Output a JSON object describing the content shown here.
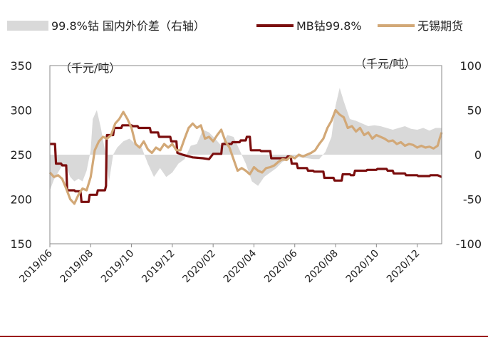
{
  "chart_data": {
    "type": "line",
    "title": "",
    "legend": [
      {
        "name": "99.8%钴 国内外价差（右轴）",
        "kind": "area",
        "color": "#d9d9d9",
        "axis": "right"
      },
      {
        "name": "MB钴99.8%",
        "kind": "line",
        "color": "#7b0e0e",
        "axis": "left"
      },
      {
        "name": "无锡期货",
        "kind": "line",
        "color": "#d2a877",
        "axis": "left"
      }
    ],
    "left_axis": {
      "unit_label": "（千元/吨）",
      "min": 150,
      "max": 350,
      "ticks": [
        "350",
        "300",
        "250",
        "200",
        "150"
      ]
    },
    "right_axis": {
      "unit_label": "（千元/吨）",
      "min": -100,
      "max": 100,
      "ticks": [
        "100",
        "50",
        "0",
        "-50",
        "-100"
      ]
    },
    "x_range": [
      0,
      19.2
    ],
    "x_ticks": [
      {
        "x": 0,
        "label": "2019/06"
      },
      {
        "x": 2,
        "label": "2019/08"
      },
      {
        "x": 4,
        "label": "2019/10"
      },
      {
        "x": 6,
        "label": "2019/12"
      },
      {
        "x": 8,
        "label": "2020/02"
      },
      {
        "x": 10,
        "label": "2020/04"
      },
      {
        "x": 12,
        "label": "2020/06"
      },
      {
        "x": 14,
        "label": "2020/08"
      },
      {
        "x": 16,
        "label": "2020/10"
      },
      {
        "x": 18,
        "label": "2020/12"
      }
    ],
    "series": [
      {
        "name": "99.8%钴 国内外价差（右轴）",
        "axis": "right",
        "points": [
          [
            0,
            -40
          ],
          [
            0.2,
            -28
          ],
          [
            0.4,
            -20
          ],
          [
            0.6,
            -12
          ],
          [
            0.8,
            -14
          ],
          [
            1.0,
            -25
          ],
          [
            1.2,
            -30
          ],
          [
            1.4,
            -27
          ],
          [
            1.6,
            -30
          ],
          [
            1.8,
            -18
          ],
          [
            2.0,
            5
          ],
          [
            2.1,
            40
          ],
          [
            2.3,
            50
          ],
          [
            2.5,
            30
          ],
          [
            2.7,
            5
          ],
          [
            2.9,
            -30
          ],
          [
            3.1,
            0
          ],
          [
            3.3,
            8
          ],
          [
            3.6,
            15
          ],
          [
            3.9,
            18
          ],
          [
            4.2,
            12
          ],
          [
            4.5,
            8
          ],
          [
            4.8,
            -10
          ],
          [
            5.1,
            -25
          ],
          [
            5.4,
            -15
          ],
          [
            5.7,
            -25
          ],
          [
            6.0,
            -20
          ],
          [
            6.3,
            -10
          ],
          [
            6.6,
            -5
          ],
          [
            6.9,
            10
          ],
          [
            7.2,
            12
          ],
          [
            7.5,
            28
          ],
          [
            7.8,
            25
          ],
          [
            8.1,
            18
          ],
          [
            8.4,
            10
          ],
          [
            8.7,
            22
          ],
          [
            9.0,
            20
          ],
          [
            9.3,
            5
          ],
          [
            9.6,
            -10
          ],
          [
            9.9,
            -30
          ],
          [
            10.2,
            -35
          ],
          [
            10.5,
            -25
          ],
          [
            10.8,
            -20
          ],
          [
            11.1,
            -15
          ],
          [
            11.4,
            -8
          ],
          [
            11.7,
            -5
          ],
          [
            12.0,
            -2
          ],
          [
            12.3,
            -3
          ],
          [
            12.6,
            -4
          ],
          [
            12.9,
            -5
          ],
          [
            13.2,
            -5
          ],
          [
            13.5,
            3
          ],
          [
            13.8,
            20
          ],
          [
            14.0,
            55
          ],
          [
            14.2,
            75
          ],
          [
            14.4,
            60
          ],
          [
            14.7,
            40
          ],
          [
            15.0,
            38
          ],
          [
            15.3,
            35
          ],
          [
            15.6,
            32
          ],
          [
            15.9,
            33
          ],
          [
            16.2,
            32
          ],
          [
            16.5,
            30
          ],
          [
            16.8,
            28
          ],
          [
            17.1,
            30
          ],
          [
            17.4,
            32
          ],
          [
            17.7,
            29
          ],
          [
            18.0,
            28
          ],
          [
            18.3,
            30
          ],
          [
            18.6,
            27
          ],
          [
            18.9,
            30
          ],
          [
            19.2,
            30
          ]
        ]
      },
      {
        "name": "MB钴99.8%",
        "axis": "left",
        "points": [
          [
            0,
            262
          ],
          [
            0.25,
            262
          ],
          [
            0.3,
            240
          ],
          [
            0.55,
            240
          ],
          [
            0.6,
            238
          ],
          [
            0.8,
            238
          ],
          [
            0.85,
            210
          ],
          [
            1.2,
            210
          ],
          [
            1.25,
            209
          ],
          [
            1.5,
            209
          ],
          [
            1.55,
            197
          ],
          [
            1.9,
            197
          ],
          [
            1.95,
            205
          ],
          [
            2.3,
            205
          ],
          [
            2.35,
            210
          ],
          [
            2.7,
            210
          ],
          [
            2.75,
            215
          ],
          [
            2.78,
            265
          ],
          [
            2.8,
            272
          ],
          [
            3.1,
            272
          ],
          [
            3.15,
            280
          ],
          [
            3.5,
            280
          ],
          [
            3.55,
            283
          ],
          [
            4.0,
            283
          ],
          [
            4.05,
            282
          ],
          [
            4.3,
            282
          ],
          [
            4.35,
            280
          ],
          [
            4.9,
            280
          ],
          [
            4.95,
            275
          ],
          [
            5.3,
            275
          ],
          [
            5.35,
            270
          ],
          [
            5.9,
            270
          ],
          [
            5.95,
            265
          ],
          [
            6.2,
            265
          ],
          [
            6.25,
            252
          ],
          [
            6.5,
            250
          ],
          [
            7.0,
            247
          ],
          [
            7.5,
            246
          ],
          [
            7.8,
            245
          ],
          [
            8.0,
            251
          ],
          [
            8.4,
            251
          ],
          [
            8.45,
            262
          ],
          [
            8.9,
            262
          ],
          [
            8.95,
            264
          ],
          [
            9.3,
            264
          ],
          [
            9.35,
            266
          ],
          [
            9.6,
            266
          ],
          [
            9.65,
            270
          ],
          [
            9.8,
            270
          ],
          [
            9.85,
            255
          ],
          [
            10.3,
            255
          ],
          [
            10.35,
            254
          ],
          [
            10.8,
            254
          ],
          [
            10.85,
            246
          ],
          [
            11.6,
            246
          ],
          [
            11.65,
            248
          ],
          [
            11.8,
            248
          ],
          [
            11.85,
            240
          ],
          [
            12.1,
            240
          ],
          [
            12.15,
            235
          ],
          [
            12.6,
            235
          ],
          [
            12.65,
            232
          ],
          [
            12.9,
            232
          ],
          [
            12.95,
            231
          ],
          [
            13.4,
            231
          ],
          [
            13.45,
            224
          ],
          [
            13.9,
            224
          ],
          [
            13.95,
            221
          ],
          [
            14.3,
            221
          ],
          [
            14.35,
            228
          ],
          [
            14.7,
            228
          ],
          [
            14.75,
            227
          ],
          [
            14.9,
            227
          ],
          [
            14.95,
            232
          ],
          [
            15.5,
            232
          ],
          [
            15.55,
            233
          ],
          [
            16.0,
            233
          ],
          [
            16.05,
            234
          ],
          [
            16.5,
            234
          ],
          [
            16.55,
            232
          ],
          [
            16.8,
            232
          ],
          [
            16.85,
            229
          ],
          [
            17.4,
            229
          ],
          [
            17.45,
            227
          ],
          [
            18.0,
            227
          ],
          [
            18.05,
            226
          ],
          [
            18.6,
            226
          ],
          [
            18.65,
            227
          ],
          [
            19.0,
            227
          ],
          [
            19.2,
            225
          ]
        ]
      },
      {
        "name": "无锡期货",
        "axis": "left",
        "points": [
          [
            0,
            230
          ],
          [
            0.2,
            225
          ],
          [
            0.4,
            227
          ],
          [
            0.6,
            223
          ],
          [
            0.8,
            212
          ],
          [
            1.0,
            200
          ],
          [
            1.2,
            195
          ],
          [
            1.4,
            205
          ],
          [
            1.6,
            212
          ],
          [
            1.8,
            210
          ],
          [
            2.0,
            225
          ],
          [
            2.2,
            255
          ],
          [
            2.4,
            265
          ],
          [
            2.6,
            270
          ],
          [
            2.8,
            268
          ],
          [
            3.0,
            272
          ],
          [
            3.2,
            285
          ],
          [
            3.4,
            290
          ],
          [
            3.6,
            298
          ],
          [
            3.8,
            290
          ],
          [
            4.0,
            280
          ],
          [
            4.2,
            262
          ],
          [
            4.4,
            258
          ],
          [
            4.6,
            265
          ],
          [
            4.8,
            256
          ],
          [
            5.0,
            252
          ],
          [
            5.2,
            258
          ],
          [
            5.4,
            255
          ],
          [
            5.6,
            262
          ],
          [
            5.8,
            258
          ],
          [
            6.0,
            262
          ],
          [
            6.2,
            255
          ],
          [
            6.4,
            255
          ],
          [
            6.6,
            268
          ],
          [
            6.8,
            280
          ],
          [
            7.0,
            285
          ],
          [
            7.2,
            280
          ],
          [
            7.4,
            283
          ],
          [
            7.6,
            268
          ],
          [
            7.8,
            270
          ],
          [
            8.0,
            265
          ],
          [
            8.2,
            272
          ],
          [
            8.4,
            278
          ],
          [
            8.6,
            265
          ],
          [
            8.8,
            258
          ],
          [
            9.0,
            245
          ],
          [
            9.2,
            232
          ],
          [
            9.4,
            235
          ],
          [
            9.6,
            232
          ],
          [
            9.8,
            228
          ],
          [
            10.0,
            236
          ],
          [
            10.2,
            232
          ],
          [
            10.4,
            230
          ],
          [
            10.6,
            235
          ],
          [
            10.8,
            236
          ],
          [
            11.0,
            238
          ],
          [
            11.2,
            242
          ],
          [
            11.4,
            245
          ],
          [
            11.6,
            244
          ],
          [
            11.8,
            248
          ],
          [
            12.0,
            246
          ],
          [
            12.2,
            250
          ],
          [
            12.4,
            248
          ],
          [
            12.6,
            250
          ],
          [
            12.8,
            252
          ],
          [
            13.0,
            255
          ],
          [
            13.2,
            262
          ],
          [
            13.4,
            268
          ],
          [
            13.6,
            280
          ],
          [
            13.8,
            288
          ],
          [
            14.0,
            300
          ],
          [
            14.2,
            295
          ],
          [
            14.4,
            292
          ],
          [
            14.6,
            280
          ],
          [
            14.8,
            282
          ],
          [
            15.0,
            276
          ],
          [
            15.2,
            280
          ],
          [
            15.4,
            272
          ],
          [
            15.6,
            275
          ],
          [
            15.8,
            268
          ],
          [
            16.0,
            272
          ],
          [
            16.2,
            270
          ],
          [
            16.4,
            268
          ],
          [
            16.6,
            265
          ],
          [
            16.8,
            266
          ],
          [
            17.0,
            262
          ],
          [
            17.2,
            264
          ],
          [
            17.4,
            260
          ],
          [
            17.6,
            262
          ],
          [
            17.8,
            261
          ],
          [
            18.0,
            258
          ],
          [
            18.2,
            260
          ],
          [
            18.4,
            258
          ],
          [
            18.6,
            259
          ],
          [
            18.8,
            257
          ],
          [
            19.0,
            260
          ],
          [
            19.1,
            268
          ],
          [
            19.2,
            275
          ]
        ]
      }
    ]
  }
}
